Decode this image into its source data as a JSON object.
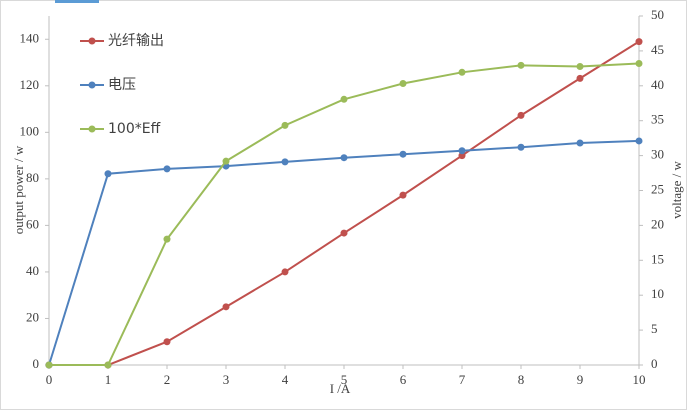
{
  "chart_data": {
    "type": "line",
    "x_label": "I /A",
    "y_label": "output power / w",
    "y2_label": "voltage / w",
    "x": [
      0,
      1,
      2,
      3,
      4,
      5,
      6,
      7,
      8,
      9,
      10
    ],
    "series": [
      {
        "name": "光纤输出",
        "color": "#c0504d",
        "values": [
          0,
          0,
          10,
          25,
          40,
          56.7,
          73,
          90,
          107.3,
          123.2,
          139
        ]
      },
      {
        "name": "电压",
        "color": "#4f81bd",
        "axis": "y2",
        "values": [
          0,
          27.4,
          28.1,
          28.5,
          29.1,
          29.7,
          30.2,
          30.7,
          31.2,
          31.8,
          32.1
        ]
      },
      {
        "name": "100*Eff",
        "color": "#9bbb59",
        "values": [
          0,
          0,
          54.1,
          87.6,
          103,
          114.2,
          121,
          125.8,
          128.8,
          128.3,
          129.6
        ]
      }
    ],
    "xlim": [
      0,
      10
    ],
    "xticks": [
      0,
      1,
      2,
      3,
      4,
      5,
      6,
      7,
      8,
      9,
      10
    ],
    "ylim": [
      0,
      150
    ],
    "yticks": [
      0,
      20,
      40,
      60,
      80,
      100,
      120,
      140
    ],
    "y2lim": [
      0,
      50
    ],
    "y2ticks": [
      0,
      5,
      10,
      15,
      20,
      25,
      30,
      35,
      40,
      45,
      50
    ],
    "grid": false
  }
}
